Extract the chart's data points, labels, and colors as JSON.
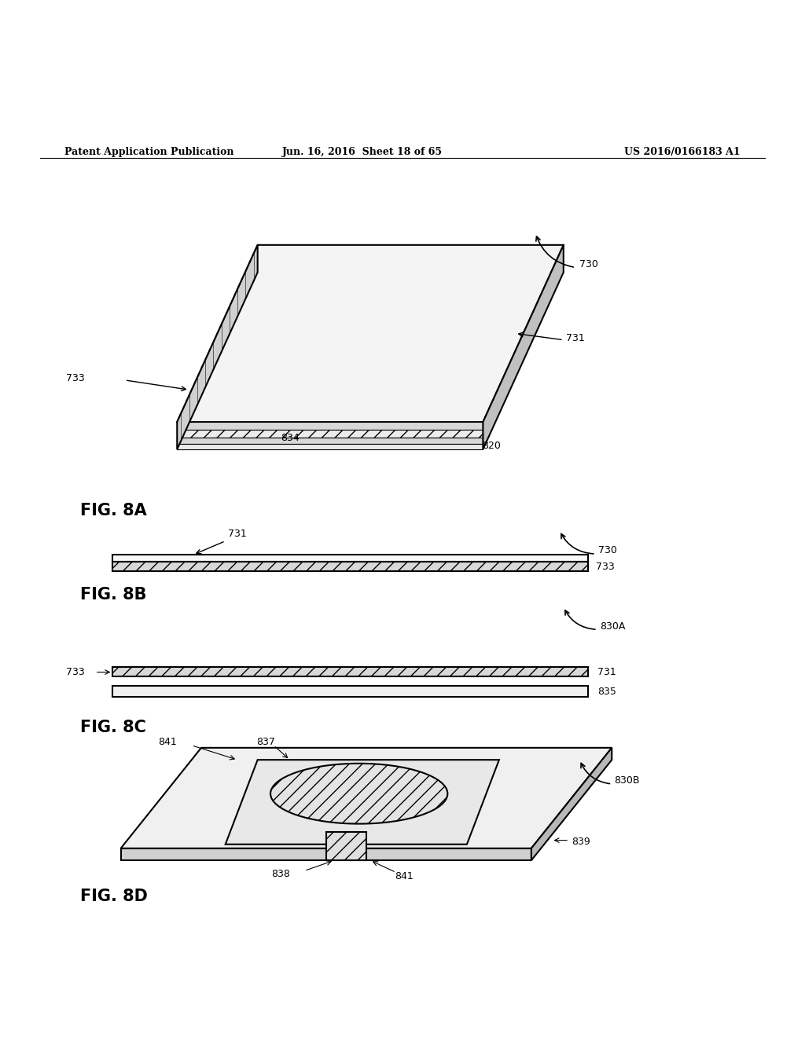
{
  "background_color": "#ffffff",
  "header_left": "Patent Application Publication",
  "header_mid": "Jun. 16, 2016  Sheet 18 of 65",
  "header_right": "US 2016/0166183 A1",
  "fig8a_label": "FIG. 8A",
  "fig8b_label": "FIG. 8B",
  "fig8c_label": "FIG. 8C",
  "fig8d_label": "FIG. 8D"
}
